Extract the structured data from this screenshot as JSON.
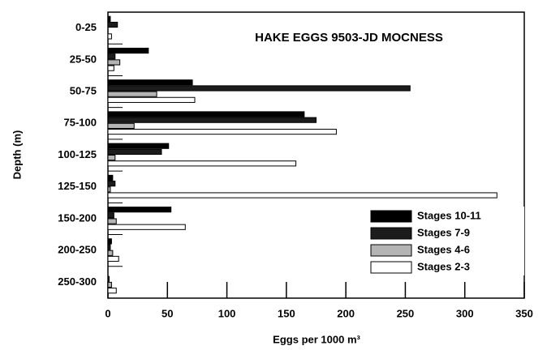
{
  "chart_data": {
    "type": "hbar",
    "title": "HAKE EGGS 9503-JD MOCNESS",
    "x_label": "Eggs per 1000 m³",
    "y_label": "Depth (m)",
    "categories": [
      "0-25",
      "25-50",
      "50-75",
      "75-100",
      "100-125",
      "125-150",
      "150-200",
      "200-250",
      "250-300"
    ],
    "series": [
      {
        "name": "Stages 10-11",
        "color": "#000000",
        "values": [
          2,
          34,
          71,
          165,
          51,
          4,
          53,
          3,
          0
        ]
      },
      {
        "name": "Stages 7-9",
        "color": "#1c1c1c",
        "values": [
          8,
          6,
          254,
          175,
          45,
          6,
          5,
          2,
          1
        ]
      },
      {
        "name": "Stages 4-6",
        "color": "#b4b4b4",
        "values": [
          0,
          10,
          41,
          22,
          6,
          2,
          7,
          4,
          3
        ]
      },
      {
        "name": "Stages 2-3",
        "color": "#ffffff",
        "values": [
          3,
          5,
          73,
          192,
          158,
          327,
          65,
          9,
          7
        ]
      }
    ],
    "xlim": [
      0,
      350
    ],
    "xticks": [
      0,
      50,
      100,
      150,
      200,
      250,
      300,
      350
    ],
    "legend": "lower right"
  }
}
